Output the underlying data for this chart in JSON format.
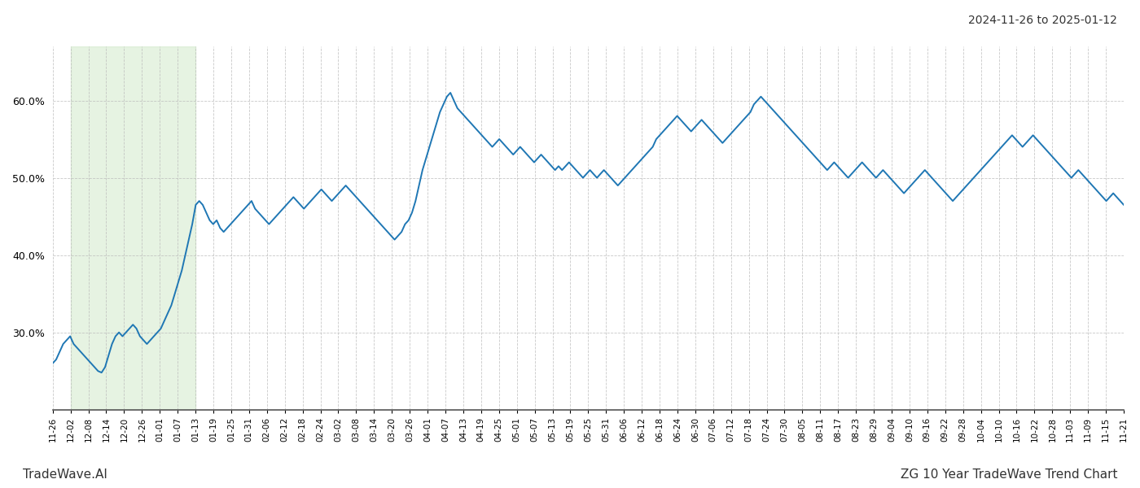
{
  "title_top_right": "2024-11-26 to 2025-01-12",
  "footer_left": "TradeWave.AI",
  "footer_right": "ZG 10 Year TradeWave Trend Chart",
  "line_color": "#1f77b4",
  "line_width": 1.4,
  "background_color": "#ffffff",
  "grid_color": "#bbbbbb",
  "green_shade_color": "#c8e6c0",
  "green_shade_alpha": 0.45,
  "ylim": [
    20.0,
    67.0
  ],
  "yticks": [
    30.0,
    40.0,
    50.0,
    60.0
  ],
  "x_labels": [
    "11-26",
    "12-02",
    "12-08",
    "12-14",
    "12-20",
    "12-26",
    "01-01",
    "01-07",
    "01-13",
    "01-19",
    "01-25",
    "01-31",
    "02-06",
    "02-12",
    "02-18",
    "02-24",
    "03-02",
    "03-08",
    "03-14",
    "03-20",
    "03-26",
    "04-01",
    "04-07",
    "04-13",
    "04-19",
    "04-25",
    "05-01",
    "05-07",
    "05-13",
    "05-19",
    "05-25",
    "05-31",
    "06-06",
    "06-12",
    "06-18",
    "06-24",
    "06-30",
    "07-06",
    "07-12",
    "07-18",
    "07-24",
    "07-30",
    "08-05",
    "08-11",
    "08-17",
    "08-23",
    "08-29",
    "09-04",
    "09-10",
    "09-16",
    "09-22",
    "09-28",
    "10-04",
    "10-10",
    "10-16",
    "10-22",
    "10-28",
    "11-03",
    "11-09",
    "11-15",
    "11-21"
  ],
  "green_shade_start_label": "12-02",
  "green_shade_end_label": "01-13",
  "values": [
    26.0,
    26.5,
    27.5,
    28.5,
    29.0,
    29.5,
    28.5,
    28.0,
    27.5,
    27.0,
    26.5,
    26.0,
    25.5,
    25.0,
    24.8,
    25.5,
    27.0,
    28.5,
    29.5,
    30.0,
    29.5,
    30.0,
    30.5,
    31.0,
    30.5,
    29.5,
    29.0,
    28.5,
    29.0,
    29.5,
    30.0,
    30.5,
    31.5,
    32.5,
    33.5,
    35.0,
    36.5,
    38.0,
    40.0,
    42.0,
    44.0,
    46.5,
    47.0,
    46.5,
    45.5,
    44.5,
    44.0,
    44.5,
    43.5,
    43.0,
    43.5,
    44.0,
    44.5,
    45.0,
    45.5,
    46.0,
    46.5,
    47.0,
    46.0,
    45.5,
    45.0,
    44.5,
    44.0,
    44.5,
    45.0,
    45.5,
    46.0,
    46.5,
    47.0,
    47.5,
    47.0,
    46.5,
    46.0,
    46.5,
    47.0,
    47.5,
    48.0,
    48.5,
    48.0,
    47.5,
    47.0,
    47.5,
    48.0,
    48.5,
    49.0,
    48.5,
    48.0,
    47.5,
    47.0,
    46.5,
    46.0,
    45.5,
    45.0,
    44.5,
    44.0,
    43.5,
    43.0,
    42.5,
    42.0,
    42.5,
    43.0,
    44.0,
    44.5,
    45.5,
    47.0,
    49.0,
    51.0,
    52.5,
    54.0,
    55.5,
    57.0,
    58.5,
    59.5,
    60.5,
    61.0,
    60.0,
    59.0,
    58.5,
    58.0,
    57.5,
    57.0,
    56.5,
    56.0,
    55.5,
    55.0,
    54.5,
    54.0,
    54.5,
    55.0,
    54.5,
    54.0,
    53.5,
    53.0,
    53.5,
    54.0,
    53.5,
    53.0,
    52.5,
    52.0,
    52.5,
    53.0,
    52.5,
    52.0,
    51.5,
    51.0,
    51.5,
    51.0,
    51.5,
    52.0,
    51.5,
    51.0,
    50.5,
    50.0,
    50.5,
    51.0,
    50.5,
    50.0,
    50.5,
    51.0,
    50.5,
    50.0,
    49.5,
    49.0,
    49.5,
    50.0,
    50.5,
    51.0,
    51.5,
    52.0,
    52.5,
    53.0,
    53.5,
    54.0,
    55.0,
    55.5,
    56.0,
    56.5,
    57.0,
    57.5,
    58.0,
    57.5,
    57.0,
    56.5,
    56.0,
    56.5,
    57.0,
    57.5,
    57.0,
    56.5,
    56.0,
    55.5,
    55.0,
    54.5,
    55.0,
    55.5,
    56.0,
    56.5,
    57.0,
    57.5,
    58.0,
    58.5,
    59.5,
    60.0,
    60.5,
    60.0,
    59.5,
    59.0,
    58.5,
    58.0,
    57.5,
    57.0,
    56.5,
    56.0,
    55.5,
    55.0,
    54.5,
    54.0,
    53.5,
    53.0,
    52.5,
    52.0,
    51.5,
    51.0,
    51.5,
    52.0,
    51.5,
    51.0,
    50.5,
    50.0,
    50.5,
    51.0,
    51.5,
    52.0,
    51.5,
    51.0,
    50.5,
    50.0,
    50.5,
    51.0,
    50.5,
    50.0,
    49.5,
    49.0,
    48.5,
    48.0,
    48.5,
    49.0,
    49.5,
    50.0,
    50.5,
    51.0,
    50.5,
    50.0,
    49.5,
    49.0,
    48.5,
    48.0,
    47.5,
    47.0,
    47.5,
    48.0,
    48.5,
    49.0,
    49.5,
    50.0,
    50.5,
    51.0,
    51.5,
    52.0,
    52.5,
    53.0,
    53.5,
    54.0,
    54.5,
    55.0,
    55.5,
    55.0,
    54.5,
    54.0,
    54.5,
    55.0,
    55.5,
    55.0,
    54.5,
    54.0,
    53.5,
    53.0,
    52.5,
    52.0,
    51.5,
    51.0,
    50.5,
    50.0,
    50.5,
    51.0,
    50.5,
    50.0,
    49.5,
    49.0,
    48.5,
    48.0,
    47.5,
    47.0,
    47.5,
    48.0,
    47.5,
    47.0,
    46.5
  ]
}
